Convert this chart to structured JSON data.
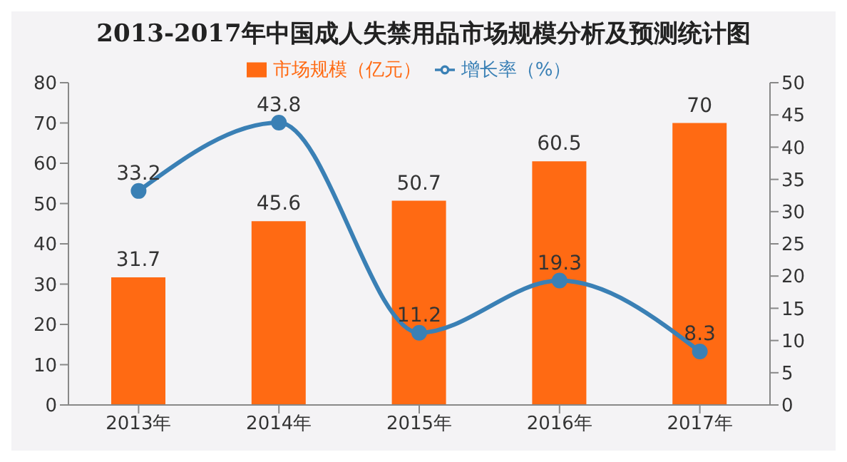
{
  "chart_data": {
    "type": "bar",
    "title": "2013-2017年中国成人失禁用品市场规模分析及预测统计图",
    "categories": [
      "2013年",
      "2014年",
      "2015年",
      "2016年",
      "2017年"
    ],
    "series": [
      {
        "name": "市场规模（亿元）",
        "color": "#ff6a13",
        "values": [
          31.7,
          45.6,
          50.7,
          60.5,
          70
        ]
      },
      {
        "name": "增长率（%）",
        "type": "line",
        "axis": "y2",
        "color": "#3a80b5",
        "values": [
          33.2,
          43.8,
          11.2,
          19.3,
          8.3
        ]
      }
    ],
    "ylim": [
      0,
      80
    ],
    "yticks": [
      0,
      10,
      20,
      30,
      40,
      50,
      60,
      70,
      80
    ],
    "y2lim": [
      0,
      50
    ],
    "y2ticks": [
      0,
      5,
      10,
      15,
      20,
      25,
      30,
      35,
      40,
      45,
      50
    ],
    "data_labels": true,
    "legend": "top",
    "marker": "circle",
    "line_style": "solid"
  }
}
